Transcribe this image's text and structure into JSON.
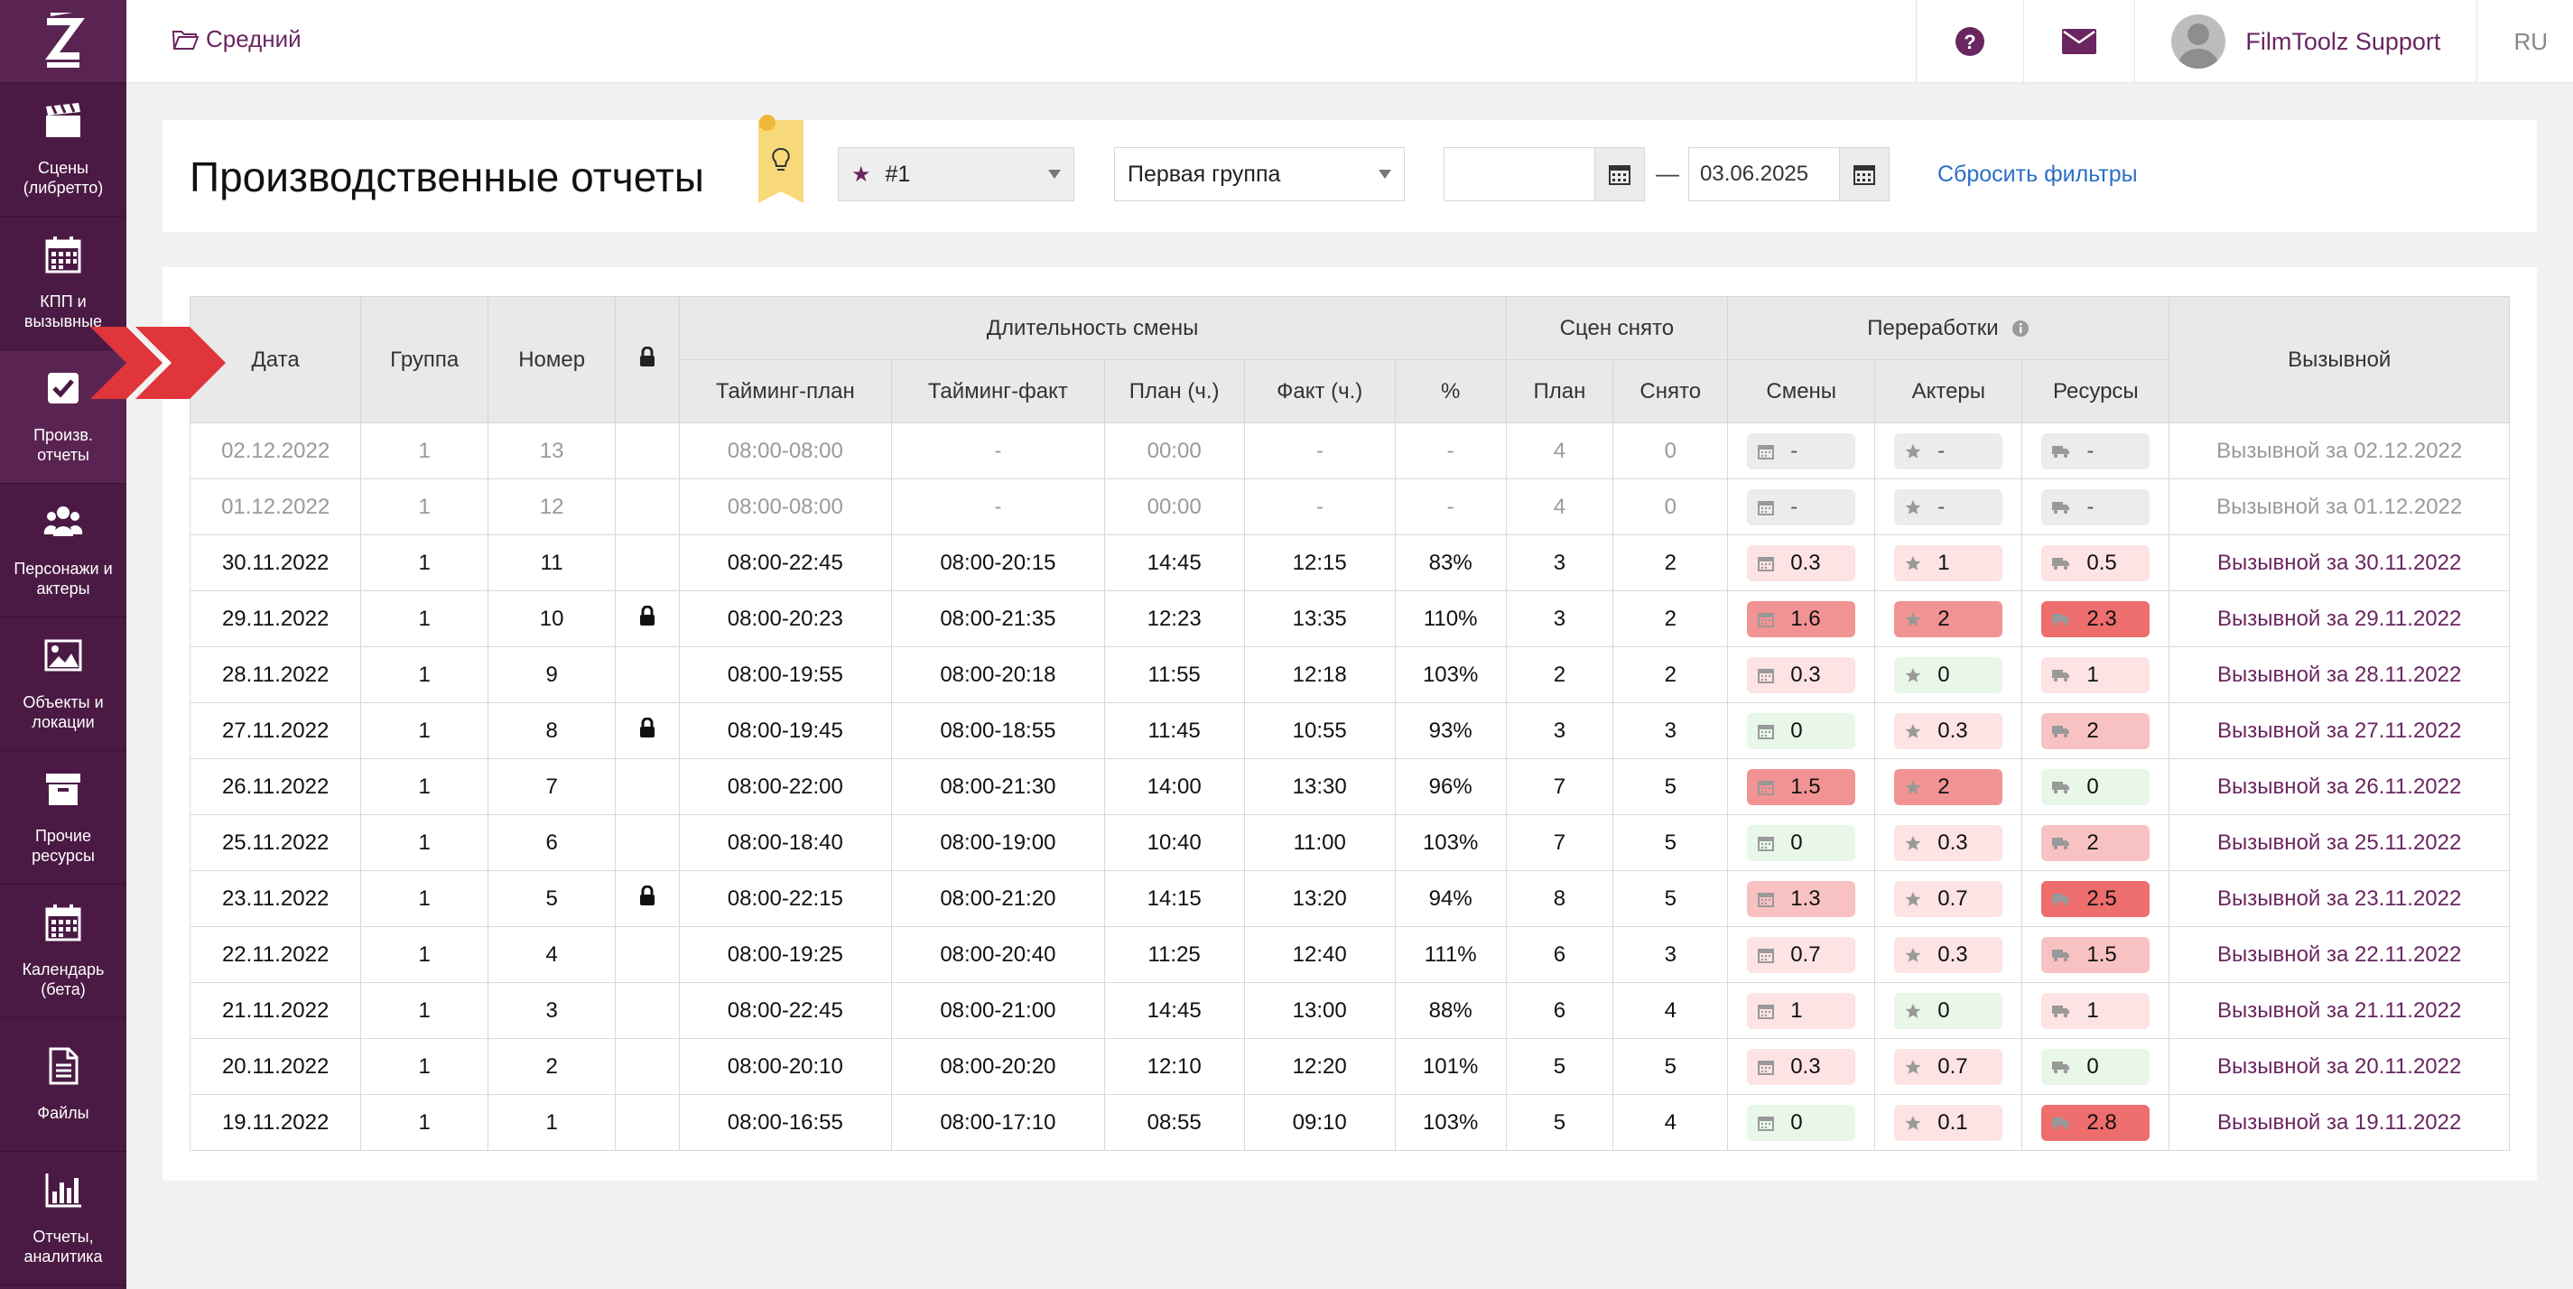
{
  "colors": {
    "brand": "#4a1a44",
    "link": "#6a2660",
    "reset_link": "#2b6fc7"
  },
  "sidebar": {
    "items": [
      {
        "label": "Сцены (либретто)",
        "icon": "clapperboard-icon"
      },
      {
        "label": "КПП и вызывные",
        "icon": "calendar-icon"
      },
      {
        "label": "Произв. отчеты",
        "icon": "checkbox-icon"
      },
      {
        "label": "Персонажи и актеры",
        "icon": "users-icon"
      },
      {
        "label": "Объекты и локации",
        "icon": "image-icon"
      },
      {
        "label": "Прочие ресурсы",
        "icon": "archive-icon"
      },
      {
        "label": "Календарь (бета)",
        "icon": "calendar-icon"
      },
      {
        "label": "Файлы",
        "icon": "file-icon"
      },
      {
        "label": "Отчеты, аналитика",
        "icon": "bar-chart-icon"
      }
    ]
  },
  "topbar": {
    "breadcrumb": "Средний",
    "user_name": "FilmToolz Support",
    "language": "RU"
  },
  "filters": {
    "title": "Производственные отчеты",
    "star_select": "#1",
    "group_select": "Первая группа",
    "date_from": "",
    "date_to": "03.06.2025",
    "reset_label": "Сбросить фильтры"
  },
  "table": {
    "headers": {
      "date": "Дата",
      "group": "Группа",
      "number": "Номер",
      "shift_duration": "Длительность смены",
      "timing_plan": "Тайминг-план",
      "timing_fact": "Тайминг-факт",
      "plan_h": "План (ч.)",
      "fact_h": "Факт (ч.)",
      "pct": "%",
      "scenes_shot": "Сцен снято",
      "plan": "План",
      "shot": "Снято",
      "overtime": "Переработки",
      "shifts": "Смены",
      "actors": "Актеры",
      "resources": "Ресурсы",
      "call_sheet": "Вызывной"
    },
    "rows": [
      {
        "date": "02.12.2022",
        "group": "1",
        "number": "13",
        "lock": false,
        "muted": true,
        "tplan": "08:00-08:00",
        "tfact": "-",
        "planh": "00:00",
        "facth": "-",
        "pct": "-",
        "plan": "4",
        "shot": "0",
        "s": "-",
        "sl": "na",
        "a": "-",
        "al": "na",
        "r": "-",
        "rl": "na",
        "call": "Вызывной за 02.12.2022"
      },
      {
        "date": "01.12.2022",
        "group": "1",
        "number": "12",
        "lock": false,
        "muted": true,
        "tplan": "08:00-08:00",
        "tfact": "-",
        "planh": "00:00",
        "facth": "-",
        "pct": "-",
        "plan": "4",
        "shot": "0",
        "s": "-",
        "sl": "na",
        "a": "-",
        "al": "na",
        "r": "-",
        "rl": "na",
        "call": "Вызывной за 01.12.2022"
      },
      {
        "date": "30.11.2022",
        "group": "1",
        "number": "11",
        "lock": false,
        "muted": false,
        "tplan": "08:00-22:45",
        "tfact": "08:00-20:15",
        "planh": "14:45",
        "facth": "12:15",
        "pct": "83%",
        "plan": "3",
        "shot": "2",
        "s": "0.3",
        "sl": "1",
        "a": "1",
        "al": "1",
        "r": "0.5",
        "rl": "1",
        "call": "Вызывной за 30.11.2022"
      },
      {
        "date": "29.11.2022",
        "group": "1",
        "number": "10",
        "lock": true,
        "muted": false,
        "tplan": "08:00-20:23",
        "tfact": "08:00-21:35",
        "planh": "12:23",
        "facth": "13:35",
        "pct": "110%",
        "plan": "3",
        "shot": "2",
        "s": "1.6",
        "sl": "3",
        "a": "2",
        "al": "3",
        "r": "2.3",
        "rl": "4",
        "call": "Вызывной за 29.11.2022"
      },
      {
        "date": "28.11.2022",
        "group": "1",
        "number": "9",
        "lock": false,
        "muted": false,
        "tplan": "08:00-19:55",
        "tfact": "08:00-20:18",
        "planh": "11:55",
        "facth": "12:18",
        "pct": "103%",
        "plan": "2",
        "shot": "2",
        "s": "0.3",
        "sl": "1",
        "a": "0",
        "al": "0",
        "r": "1",
        "rl": "1",
        "call": "Вызывной за 28.11.2022"
      },
      {
        "date": "27.11.2022",
        "group": "1",
        "number": "8",
        "lock": true,
        "muted": false,
        "tplan": "08:00-19:45",
        "tfact": "08:00-18:55",
        "planh": "11:45",
        "facth": "10:55",
        "pct": "93%",
        "plan": "3",
        "shot": "3",
        "s": "0",
        "sl": "0",
        "a": "0.3",
        "al": "1",
        "r": "2",
        "rl": "2",
        "call": "Вызывной за 27.11.2022"
      },
      {
        "date": "26.11.2022",
        "group": "1",
        "number": "7",
        "lock": false,
        "muted": false,
        "tplan": "08:00-22:00",
        "tfact": "08:00-21:30",
        "planh": "14:00",
        "facth": "13:30",
        "pct": "96%",
        "plan": "7",
        "shot": "5",
        "s": "1.5",
        "sl": "3",
        "a": "2",
        "al": "3",
        "r": "0",
        "rl": "0",
        "call": "Вызывной за 26.11.2022"
      },
      {
        "date": "25.11.2022",
        "group": "1",
        "number": "6",
        "lock": false,
        "muted": false,
        "tplan": "08:00-18:40",
        "tfact": "08:00-19:00",
        "planh": "10:40",
        "facth": "11:00",
        "pct": "103%",
        "plan": "7",
        "shot": "5",
        "s": "0",
        "sl": "0",
        "a": "0.3",
        "al": "1",
        "r": "2",
        "rl": "2",
        "call": "Вызывной за 25.11.2022"
      },
      {
        "date": "23.11.2022",
        "group": "1",
        "number": "5",
        "lock": true,
        "muted": false,
        "tplan": "08:00-22:15",
        "tfact": "08:00-21:20",
        "planh": "14:15",
        "facth": "13:20",
        "pct": "94%",
        "plan": "8",
        "shot": "5",
        "s": "1.3",
        "sl": "2",
        "a": "0.7",
        "al": "1",
        "r": "2.5",
        "rl": "4",
        "call": "Вызывной за 23.11.2022"
      },
      {
        "date": "22.11.2022",
        "group": "1",
        "number": "4",
        "lock": false,
        "muted": false,
        "tplan": "08:00-19:25",
        "tfact": "08:00-20:40",
        "planh": "11:25",
        "facth": "12:40",
        "pct": "111%",
        "plan": "6",
        "shot": "3",
        "s": "0.7",
        "sl": "1",
        "a": "0.3",
        "al": "1",
        "r": "1.5",
        "rl": "2",
        "call": "Вызывной за 22.11.2022"
      },
      {
        "date": "21.11.2022",
        "group": "1",
        "number": "3",
        "lock": false,
        "muted": false,
        "tplan": "08:00-22:45",
        "tfact": "08:00-21:00",
        "planh": "14:45",
        "facth": "13:00",
        "pct": "88%",
        "plan": "6",
        "shot": "4",
        "s": "1",
        "sl": "1",
        "a": "0",
        "al": "0",
        "r": "1",
        "rl": "1",
        "call": "Вызывной за 21.11.2022"
      },
      {
        "date": "20.11.2022",
        "group": "1",
        "number": "2",
        "lock": false,
        "muted": false,
        "tplan": "08:00-20:10",
        "tfact": "08:00-20:20",
        "planh": "12:10",
        "facth": "12:20",
        "pct": "101%",
        "plan": "5",
        "shot": "5",
        "s": "0.3",
        "sl": "1",
        "a": "0.7",
        "al": "1",
        "r": "0",
        "rl": "0",
        "call": "Вызывной за 20.11.2022"
      },
      {
        "date": "19.11.2022",
        "group": "1",
        "number": "1",
        "lock": false,
        "muted": false,
        "tplan": "08:00-16:55",
        "tfact": "08:00-17:10",
        "planh": "08:55",
        "facth": "09:10",
        "pct": "103%",
        "plan": "5",
        "shot": "4",
        "s": "0",
        "sl": "0",
        "a": "0.1",
        "al": "1",
        "r": "2.8",
        "rl": "4",
        "call": "Вызывной за 19.11.2022"
      }
    ]
  }
}
